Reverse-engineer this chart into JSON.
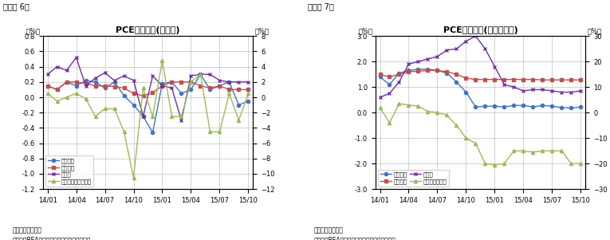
{
  "chart1": {
    "title": "PCE価格指数(前月比)",
    "label": "（図表 6）",
    "xlabel_ticks": [
      "14/01",
      "14/04",
      "14/07",
      "14/10",
      "15/01",
      "15/04",
      "15/07",
      "15/10"
    ],
    "x_tick_positions": [
      0,
      3,
      6,
      9,
      12,
      15,
      18,
      21
    ],
    "n_points": 22,
    "ylim_left": [
      -1.2,
      0.8
    ],
    "ylim_right": [
      -12,
      8
    ],
    "yticks_left": [
      -1.2,
      -1.0,
      -0.8,
      -0.6,
      -0.4,
      -0.2,
      0.0,
      0.2,
      0.4,
      0.6,
      0.8
    ],
    "yticks_right": [
      -12,
      -10,
      -8,
      -6,
      -4,
      -2,
      0,
      2,
      4,
      6,
      8
    ],
    "note1": "（注）季節調整済",
    "note2": "（資料）BEAよりニッセイ基礎研研究所作成",
    "legend_ncol": 1,
    "series": {
      "total": {
        "label": "総合指数",
        "color": "#4472C4",
        "marker": "o",
        "values": [
          0.15,
          0.1,
          0.2,
          0.15,
          0.22,
          0.2,
          0.12,
          0.2,
          0.02,
          -0.1,
          -0.25,
          -0.46,
          0.18,
          0.2,
          0.05,
          0.1,
          0.3,
          0.1,
          0.15,
          0.2,
          -0.1,
          -0.05
        ]
      },
      "core": {
        "label": "コア指数",
        "color": "#C0504D",
        "marker": "s",
        "values": [
          0.15,
          0.1,
          0.2,
          0.2,
          0.18,
          0.15,
          0.15,
          0.14,
          0.12,
          0.05,
          0.02,
          0.06,
          0.15,
          0.2,
          0.2,
          0.2,
          0.15,
          0.12,
          0.15,
          0.1,
          0.1,
          0.1
        ]
      },
      "food": {
        "label": "食料品",
        "color": "#7030A0",
        "marker": "x",
        "values": [
          0.3,
          0.4,
          0.35,
          0.52,
          0.15,
          0.25,
          0.32,
          0.22,
          0.28,
          0.22,
          -0.25,
          0.28,
          0.15,
          0.12,
          -0.3,
          0.28,
          0.3,
          0.3,
          0.22,
          0.2,
          0.2,
          0.2
        ]
      },
      "energy": {
        "label": "エネルギー（右軸）",
        "color": "#9BBB59",
        "marker": "^",
        "values": [
          0.5,
          -0.5,
          0.0,
          0.5,
          -0.2,
          -2.5,
          -1.5,
          -1.5,
          -4.5,
          -10.5,
          1.2,
          -2.5,
          4.8,
          -2.5,
          -2.5,
          2.0,
          3.0,
          -4.5,
          -4.5,
          0.5,
          -3.0,
          0.5
        ]
      }
    }
  },
  "chart2": {
    "title": "PCE価格指数(前年同月比)",
    "label": "（図表 7）",
    "xlabel_ticks": [
      "14/01",
      "14/04",
      "14/07",
      "14/10",
      "15/01",
      "15/04",
      "15/07",
      "15/10"
    ],
    "x_tick_positions": [
      0,
      3,
      6,
      9,
      12,
      15,
      18,
      21
    ],
    "n_points": 22,
    "ylim_left": [
      -3,
      3
    ],
    "ylim_right": [
      -30,
      30
    ],
    "yticks_left": [
      -3,
      -2,
      -1,
      0,
      1,
      2,
      3
    ],
    "yticks_right": [
      -30,
      -20,
      -10,
      0,
      10,
      20,
      30
    ],
    "note1": "（注）季節調整済",
    "note2": "（資料）BEAよりニッセイ基礎研究研究所作成",
    "legend_ncol": 2,
    "series": {
      "total": {
        "label": "総合指数",
        "color": "#4472C4",
        "marker": "o",
        "values": [
          1.4,
          1.1,
          1.55,
          1.65,
          1.7,
          1.7,
          1.65,
          1.55,
          1.2,
          0.8,
          0.22,
          0.25,
          0.25,
          0.22,
          0.28,
          0.28,
          0.22,
          0.28,
          0.25,
          0.2,
          0.18,
          0.22
        ]
      },
      "core": {
        "label": "コア指数",
        "color": "#C0504D",
        "marker": "s",
        "values": [
          1.5,
          1.4,
          1.5,
          1.6,
          1.62,
          1.65,
          1.65,
          1.6,
          1.5,
          1.35,
          1.3,
          1.3,
          1.3,
          1.3,
          1.3,
          1.3,
          1.3,
          1.28,
          1.28,
          1.28,
          1.28,
          1.28
        ]
      },
      "food": {
        "label": "食料品",
        "color": "#7030A0",
        "marker": "x",
        "values": [
          0.6,
          0.75,
          1.2,
          1.9,
          2.0,
          2.1,
          2.2,
          2.45,
          2.5,
          2.8,
          3.0,
          2.5,
          1.8,
          1.1,
          1.0,
          0.85,
          0.9,
          0.9,
          0.85,
          0.8,
          0.8,
          0.85
        ]
      },
      "energy": {
        "label": "エネルギー関連",
        "color": "#9BBB59",
        "marker": "^",
        "values": [
          2.0,
          -4.0,
          3.5,
          3.0,
          2.5,
          0.5,
          0.0,
          -1.0,
          -5.0,
          -10.0,
          -12.0,
          -20.0,
          -20.5,
          -20.0,
          -15.0,
          -15.0,
          -15.5,
          -15.0,
          -15.0,
          -15.0,
          -20.0,
          -20.0
        ]
      }
    }
  },
  "background_color": "#FFFFFF",
  "grid_color": "#C0C0C0"
}
